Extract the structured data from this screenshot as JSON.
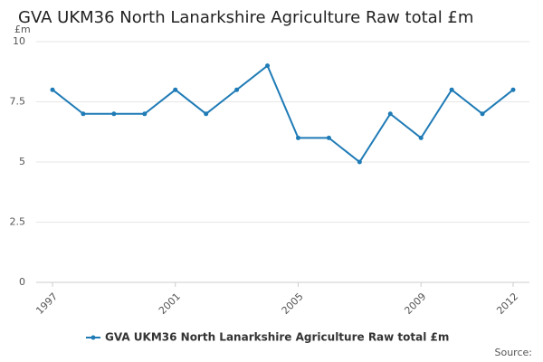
{
  "chart_data": {
    "type": "line",
    "title": "GVA UKM36 North Lanarkshire Agriculture Raw total £m",
    "y_label": "£m",
    "source": "Source:",
    "x": [
      1997,
      1998,
      1999,
      2000,
      2001,
      2002,
      2003,
      2004,
      2005,
      2006,
      2007,
      2008,
      2009,
      2010,
      2011,
      2012
    ],
    "series": [
      {
        "name": "GVA UKM36 North Lanarkshire Agriculture Raw total £m",
        "color": "#1f7bb6",
        "values": [
          8,
          7,
          7,
          7,
          8,
          7,
          8,
          9,
          6,
          6,
          5,
          7,
          6,
          8,
          7,
          8
        ]
      }
    ],
    "xlim": [
      1997,
      2012
    ],
    "xticks": [
      1997,
      2001,
      2005,
      2009,
      2012
    ],
    "ylim": [
      0,
      10
    ],
    "yticks": [
      0,
      2.5,
      5,
      7.5,
      10
    ],
    "grid": true,
    "legend": "bottom"
  }
}
